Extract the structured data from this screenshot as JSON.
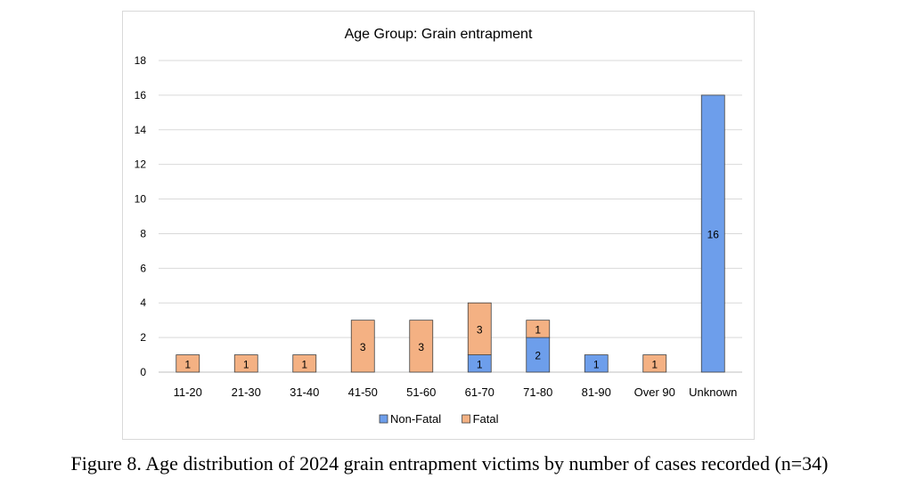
{
  "chart_data": {
    "type": "bar",
    "stacked": true,
    "title": "Age Group: Grain entrapment",
    "categories": [
      "11-20",
      "21-30",
      "31-40",
      "41-50",
      "51-60",
      "61-70",
      "71-80",
      "81-90",
      "Over 90",
      "Unknown"
    ],
    "series": [
      {
        "name": "Non-Fatal",
        "color": "#6d9eeb",
        "values": [
          0,
          0,
          0,
          0,
          0,
          1,
          2,
          1,
          0,
          16
        ]
      },
      {
        "name": "Fatal",
        "color": "#f4b183",
        "values": [
          1,
          1,
          1,
          3,
          3,
          3,
          1,
          0,
          1,
          0
        ]
      }
    ],
    "ylim": [
      0,
      18
    ],
    "yticks": [
      0,
      2,
      4,
      6,
      8,
      10,
      12,
      14,
      16,
      18
    ],
    "grid": true,
    "legend_position": "bottom",
    "xlabel": "",
    "ylabel": ""
  },
  "caption": "Figure 8. Age distribution of 2024 grain entrapment victims by number of cases recorded (n=34)"
}
